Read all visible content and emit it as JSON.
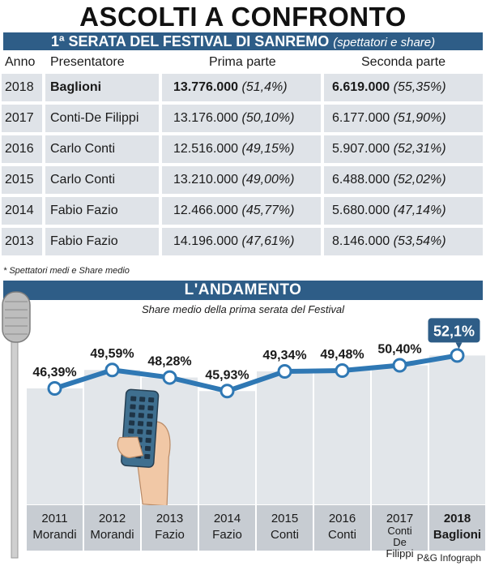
{
  "title": "ASCOLTI A CONFRONTO",
  "table": {
    "heading": "1ª SERATA DEL FESTIVAL DI SANREMO",
    "heading_note": "(spettatori e share)",
    "columns": [
      "Anno",
      "Presentatore",
      "Prima parte",
      "Seconda parte"
    ],
    "rows": [
      {
        "year": "2018",
        "presenter": "Baglioni",
        "first": "13.776.000",
        "first_share": "(51,4%)",
        "second": "6.619.000",
        "second_share": "(55,35%)"
      },
      {
        "year": "2017",
        "presenter": "Conti-De Filippi",
        "first": "13.176.000",
        "first_share": "(50,10%)",
        "second": "6.177.000",
        "second_share": "(51,90%)"
      },
      {
        "year": "2016",
        "presenter": "Carlo Conti",
        "first": "12.516.000",
        "first_share": "(49,15%)",
        "second": "5.907.000",
        "second_share": "(52,31%)"
      },
      {
        "year": "2015",
        "presenter": "Carlo Conti",
        "first": "13.210.000",
        "first_share": "(49,00%)",
        "second": "6.488.000",
        "second_share": "(52,02%)"
      },
      {
        "year": "2014",
        "presenter": "Fabio Fazio",
        "first": "12.466.000",
        "first_share": "(45,77%)",
        "second": "5.680.000",
        "second_share": "(47,14%)"
      },
      {
        "year": "2013",
        "presenter": "Fabio Fazio",
        "first": "14.196.000",
        "first_share": "(47,61%)",
        "second": "8.146.000",
        "second_share": "(53,54%)"
      }
    ],
    "footnote": "* Spettatori medi e Share medio"
  },
  "chart_data": {
    "type": "line",
    "title": "L'ANDAMENTO",
    "subtitle": "Share medio della prima serata del Festival",
    "categories": [
      {
        "year": "2011",
        "presenter": "Morandi"
      },
      {
        "year": "2012",
        "presenter": "Morandi"
      },
      {
        "year": "2013",
        "presenter": "Fazio"
      },
      {
        "year": "2014",
        "presenter": "Fazio"
      },
      {
        "year": "2015",
        "presenter": "Conti"
      },
      {
        "year": "2016",
        "presenter": "Conti"
      },
      {
        "year": "2017",
        "presenter": "Conti De Filippi"
      },
      {
        "year": "2018",
        "presenter": "Baglioni"
      }
    ],
    "values": [
      46.39,
      49.59,
      48.28,
      45.93,
      49.34,
      49.48,
      50.4,
      52.1
    ],
    "labels": [
      "46,39%",
      "49,59%",
      "48,28%",
      "45,93%",
      "49,34%",
      "49,48%",
      "50,40%",
      "52,1%"
    ],
    "ylim": [
      44,
      53
    ],
    "highlight_index": 7
  },
  "colors": {
    "accent": "#2e5d87",
    "line": "#2f78b4",
    "row_bg": "#dfe3e8",
    "column_bg": "#e2e6ea"
  },
  "credit": "P&G Infograph"
}
